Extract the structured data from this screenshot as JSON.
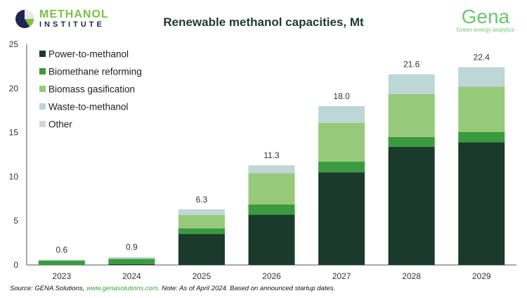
{
  "header": {
    "left_logo": "METHANOL INSTITUTE",
    "left_logo_line1": "METHANOL",
    "left_logo_line2": "INSTITUTE",
    "right_logo": "Gena",
    "right_logo_tagline": "Green energy analytics"
  },
  "footer": {
    "source_prefix": "Source: GENA Solutions, ",
    "source_link": "www.genasolutions.com.",
    "source_note": " Note: As of April 2024. Based on announced startup dates."
  },
  "chart_data": {
    "type": "bar",
    "stacked": true,
    "title": "Renewable methanol capacities, Mt",
    "xlabel": "",
    "ylabel": "",
    "ylim": [
      0,
      25
    ],
    "yticks": [
      0,
      5,
      10,
      15,
      20,
      25
    ],
    "grid": false,
    "legend_position": "top-left",
    "categories": [
      "2023",
      "2024",
      "2025",
      "2026",
      "2027",
      "2028",
      "2029"
    ],
    "totals": [
      "0.6",
      "0.9",
      "6.3",
      "11.3",
      "18.0",
      "21.6",
      "22.4"
    ],
    "series": [
      {
        "name": "Power-to-methanol",
        "color": "#1a3a2c",
        "values": [
          0.0,
          0.1,
          3.5,
          5.7,
          10.5,
          13.4,
          13.9
        ]
      },
      {
        "name": "Biomethane reforming",
        "color": "#3a9a3e",
        "values": [
          0.5,
          0.6,
          0.65,
          1.15,
          1.2,
          1.1,
          1.15
        ]
      },
      {
        "name": "Biomass gasification",
        "color": "#96c97a",
        "values": [
          0.0,
          0.0,
          1.5,
          3.55,
          4.4,
          4.85,
          5.15
        ]
      },
      {
        "name": "Waste-to-methanol",
        "color": "#bdd6d6",
        "values": [
          0.1,
          0.15,
          0.65,
          0.8,
          1.9,
          2.25,
          2.2
        ]
      },
      {
        "name": "Other",
        "color": "#d4d4d4",
        "values": [
          0.0,
          0.05,
          0.0,
          0.1,
          0.0,
          0.0,
          0.0
        ]
      }
    ]
  }
}
